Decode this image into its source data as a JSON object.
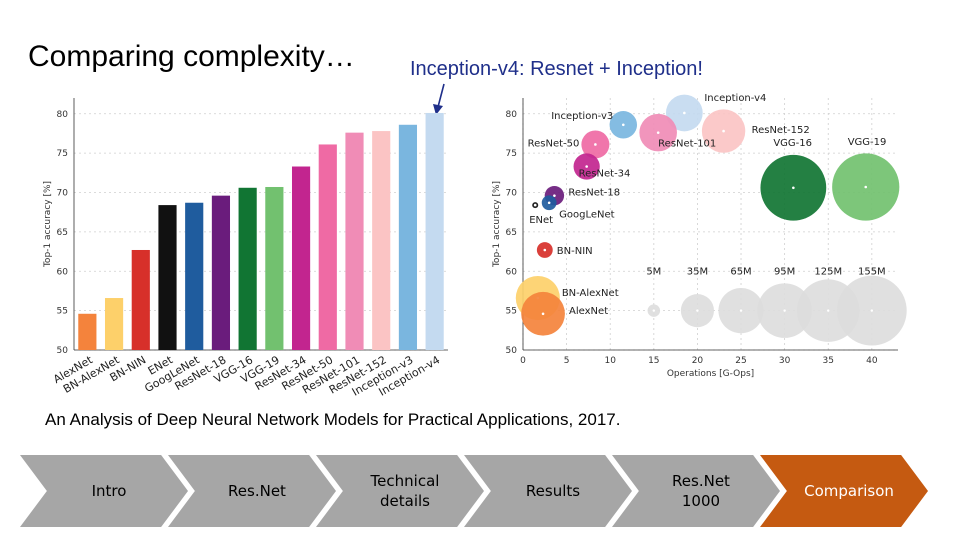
{
  "slide": {
    "title": "Comparing complexity…",
    "subtitle": "Inception-v4: Resnet + Inception!",
    "citation": "An Analysis of Deep Neural Network Models for Practical Applications, 2017."
  },
  "nav": {
    "steps": [
      "Intro",
      "Res.Net",
      "Technical\ndetails",
      "Results",
      "Res.Net\n1000",
      "Comparison"
    ],
    "active_index": 5,
    "colors": {
      "inactive": "#a6a6a6",
      "active": "#c55a11"
    }
  },
  "chart_data": [
    {
      "type": "bar",
      "ylabel": "Top-1 accuracy [%]",
      "ylim": [
        50,
        82
      ],
      "yticks": [
        50,
        55,
        60,
        65,
        70,
        75,
        80
      ],
      "grid": true,
      "categories": [
        "AlexNet",
        "BN-AlexNet",
        "BN-NIN",
        "ENet",
        "GoogLeNet",
        "ResNet-18",
        "VGG-16",
        "VGG-19",
        "ResNet-34",
        "ResNet-50",
        "ResNet-101",
        "ResNet-152",
        "Inception-v3",
        "Inception-v4"
      ],
      "values": [
        54.6,
        56.6,
        62.7,
        68.4,
        68.7,
        69.6,
        70.6,
        70.7,
        73.3,
        76.1,
        77.6,
        77.8,
        78.6,
        80.1
      ],
      "colors": [
        "#f4833c",
        "#fdd06a",
        "#d7302a",
        "#111111",
        "#1f5c9e",
        "#6a1c7c",
        "#117533",
        "#72c16f",
        "#c2258f",
        "#ef6aa4",
        "#f08cb6",
        "#fbc4c4",
        "#7ab6df",
        "#c4daf0"
      ]
    },
    {
      "type": "scatter",
      "xlabel": "Operations [G-Ops]",
      "ylabel": "Top-1 accuracy [%]",
      "xlim": [
        0,
        43
      ],
      "ylim": [
        50,
        82
      ],
      "xticks": [
        0,
        5,
        10,
        15,
        20,
        25,
        30,
        35,
        40
      ],
      "yticks": [
        50,
        55,
        60,
        65,
        70,
        75,
        80
      ],
      "grid": true,
      "points": [
        {
          "label": "Inception-v4",
          "x": 18.5,
          "y": 80.1,
          "size": 43,
          "color": "#c4daf0"
        },
        {
          "label": "Inception-v3",
          "x": 11.5,
          "y": 78.6,
          "size": 24,
          "color": "#7ab6df"
        },
        {
          "label": "ResNet-152",
          "x": 23,
          "y": 77.8,
          "size": 60,
          "color": "#fbc4c4"
        },
        {
          "label": "ResNet-101",
          "x": 15.5,
          "y": 77.6,
          "size": 45,
          "color": "#f08cb6"
        },
        {
          "label": "ResNet-50",
          "x": 8.3,
          "y": 76.1,
          "size": 25,
          "color": "#ef6aa4"
        },
        {
          "label": "ResNet-34",
          "x": 7.3,
          "y": 73.3,
          "size": 22,
          "color": "#c2258f"
        },
        {
          "label": "VGG-16",
          "x": 31,
          "y": 70.6,
          "size": 138,
          "color": "#117533"
        },
        {
          "label": "VGG-19",
          "x": 39.3,
          "y": 70.7,
          "size": 144,
          "color": "#72c16f"
        },
        {
          "label": "ResNet-18",
          "x": 3.6,
          "y": 69.6,
          "size": 12,
          "color": "#6a1c7c"
        },
        {
          "label": "GoogLeNet",
          "x": 3,
          "y": 68.7,
          "size": 7,
          "color": "#1f5c9e"
        },
        {
          "label": "ENet",
          "x": 1.4,
          "y": 68.4,
          "size": 0.4,
          "color": "#111111"
        },
        {
          "label": "BN-NIN",
          "x": 2.5,
          "y": 62.7,
          "size": 8,
          "color": "#d7302a"
        },
        {
          "label": "BN-AlexNet",
          "x": 1.7,
          "y": 56.6,
          "size": 62,
          "color": "#fdd06a"
        },
        {
          "label": "AlexNet",
          "x": 2.3,
          "y": 54.6,
          "size": 61,
          "color": "#f4833c"
        }
      ],
      "size_legend": {
        "labels": [
          "5M",
          "35M",
          "65M",
          "95M",
          "125M",
          "155M"
        ],
        "values": [
          5,
          35,
          65,
          95,
          125,
          155
        ],
        "x": [
          15,
          20,
          25,
          30,
          35,
          40
        ],
        "y": 55,
        "color": "#dddddd"
      }
    }
  ]
}
